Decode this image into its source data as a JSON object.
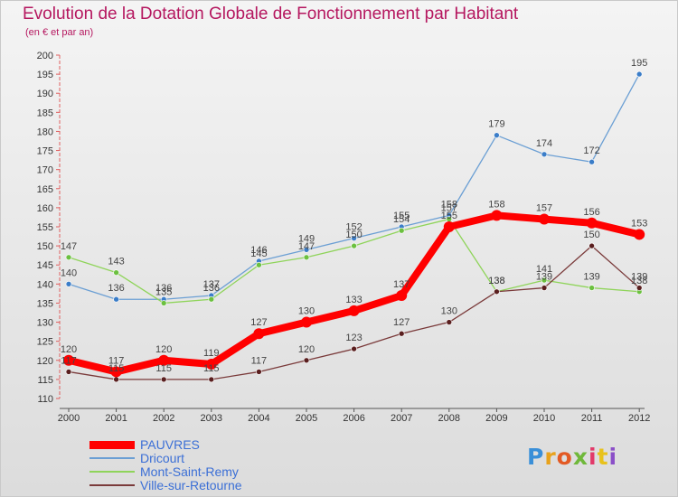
{
  "page": {
    "title": "Evolution de la Dotation Globale de Fonctionnement par Habitant",
    "subtitle": "(en € et par an)"
  },
  "logo": {
    "text": "Proxiti",
    "letter_colors": [
      "#3a8fd8",
      "#e8a21c",
      "#e35a24",
      "#6fb83a",
      "#e23a6a",
      "#e8c21c",
      "#8b4fc8"
    ]
  },
  "chart_data": {
    "type": "line",
    "title": "Evolution de la Dotation Globale de Fonctionnement par Habitant",
    "subtitle": "(en € et par an)",
    "x": [
      "2000",
      "2001",
      "2002",
      "2003",
      "2004",
      "2005",
      "2006",
      "2007",
      "2008",
      "2009",
      "2010",
      "2011",
      "2012"
    ],
    "ylim": [
      110,
      200
    ],
    "yticks": [
      110,
      115,
      120,
      125,
      130,
      135,
      140,
      145,
      150,
      155,
      160,
      165,
      170,
      175,
      180,
      185,
      190,
      195,
      200
    ],
    "grid": false,
    "legend_position": "bottom-left",
    "series": [
      {
        "name": "PAUVRES",
        "color": "#ff0000",
        "emphasis": "thick",
        "values": [
          120,
          117,
          120,
          119,
          127,
          130,
          133,
          137,
          155,
          158,
          157,
          156,
          153
        ]
      },
      {
        "name": "Dricourt",
        "color": "#6b9fd4",
        "marker": "#3b7dc8",
        "values": [
          140,
          136,
          136,
          137,
          146,
          149,
          152,
          155,
          158,
          179,
          174,
          172,
          195
        ]
      },
      {
        "name": "Mont-Saint-Remy",
        "color": "#8fd45a",
        "marker": "#6cc040",
        "values": [
          147,
          143,
          135,
          136,
          145,
          147,
          150,
          154,
          157,
          138,
          141,
          139,
          138
        ]
      },
      {
        "name": "Ville-sur-Retourne",
        "color": "#7a3a3a",
        "marker": "#5a1f1f",
        "values": [
          117,
          115,
          115,
          115,
          117,
          120,
          123,
          127,
          130,
          138,
          139,
          150,
          139
        ]
      }
    ]
  }
}
